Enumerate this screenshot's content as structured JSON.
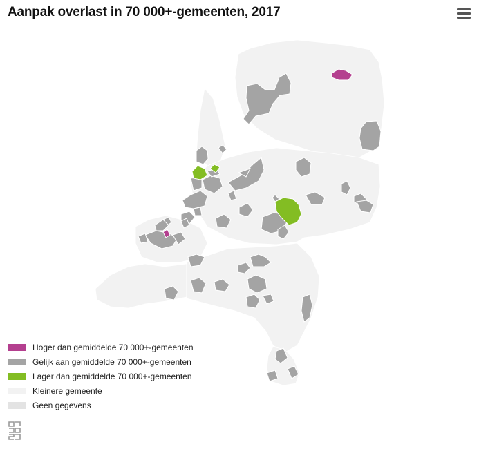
{
  "header": {
    "title": "Aanpak overlast in 70 000+-gemeenten, 2017",
    "menu_icon": "hamburger-menu-icon"
  },
  "colors": {
    "higher": "#b43f8f",
    "equal": "#a4a4a4",
    "lower": "#83bd23",
    "small": "#f2f2f2",
    "nodata": "#e3e3e3",
    "border": "#ffffff"
  },
  "legend": {
    "items": [
      {
        "label": "Hoger dan gemiddelde 70 000+-gemeenten",
        "color": "#b43f8f"
      },
      {
        "label": "Gelijk aan gemiddelde 70 000+-gemeenten",
        "color": "#a4a4a4"
      },
      {
        "label": "Lager dan gemiddelde 70 000+-gemeenten",
        "color": "#83bd23"
      },
      {
        "label": "Kleinere gemeente",
        "color": "#f2f2f2"
      },
      {
        "label": "Geen gegevens",
        "color": "#e3e3e3"
      }
    ]
  },
  "footer": {
    "logo": "cbs-logo"
  }
}
